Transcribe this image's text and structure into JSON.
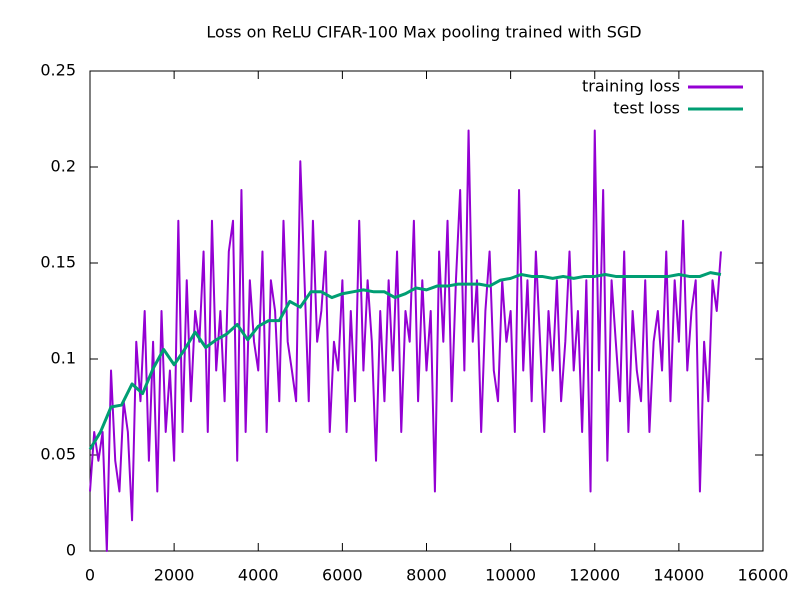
{
  "chart_data": {
    "type": "line",
    "title": "Loss on ReLU CIFAR-100 Max pooling trained with SGD",
    "xlim": [
      0,
      16000
    ],
    "xticks": [
      0,
      2000,
      4000,
      6000,
      8000,
      10000,
      12000,
      14000,
      16000
    ],
    "ylim": [
      0,
      0.25
    ],
    "yticks": [
      0,
      0.05,
      0.1,
      0.15,
      0.2,
      0.25
    ],
    "legend": "top-right",
    "series": [
      {
        "name": "training loss",
        "color": "#9400d3",
        "x": [
          0,
          100,
          200,
          300,
          400,
          500,
          600,
          700,
          800,
          900,
          1000,
          1100,
          1200,
          1300,
          1400,
          1500,
          1600,
          1700,
          1800,
          1900,
          2000,
          2100,
          2200,
          2300,
          2400,
          2500,
          2600,
          2700,
          2800,
          2900,
          3000,
          3100,
          3200,
          3300,
          3400,
          3500,
          3600,
          3700,
          3800,
          3900,
          4000,
          4100,
          4200,
          4300,
          4400,
          4500,
          4600,
          4700,
          4800,
          4900,
          5000,
          5100,
          5200,
          5300,
          5400,
          5500,
          5600,
          5700,
          5800,
          5900,
          6000,
          6100,
          6200,
          6300,
          6400,
          6500,
          6600,
          6700,
          6800,
          6900,
          7000,
          7100,
          7200,
          7300,
          7400,
          7500,
          7600,
          7700,
          7800,
          7900,
          8000,
          8100,
          8200,
          8300,
          8400,
          8500,
          8600,
          8700,
          8800,
          8900,
          9000,
          9100,
          9200,
          9300,
          9400,
          9500,
          9600,
          9700,
          9800,
          9900,
          10000,
          10100,
          10200,
          10300,
          10400,
          10500,
          10600,
          10700,
          10800,
          10900,
          11000,
          11100,
          11200,
          11300,
          11400,
          11500,
          11600,
          11700,
          11800,
          11900,
          12000,
          12100,
          12200,
          12300,
          12400,
          12500,
          12600,
          12700,
          12800,
          12900,
          13000,
          13100,
          13200,
          13300,
          13400,
          13500,
          13600,
          13700,
          13800,
          13900,
          14000,
          14100,
          14200,
          14300,
          14400,
          14500,
          14600,
          14700,
          14800,
          14900,
          15000
        ],
        "values": [
          0.031,
          0.062,
          0.047,
          0.062,
          0.0,
          0.094,
          0.047,
          0.031,
          0.078,
          0.062,
          0.016,
          0.109,
          0.078,
          0.125,
          0.047,
          0.109,
          0.031,
          0.125,
          0.062,
          0.094,
          0.047,
          0.172,
          0.062,
          0.141,
          0.078,
          0.125,
          0.109,
          0.156,
          0.062,
          0.172,
          0.094,
          0.125,
          0.078,
          0.156,
          0.172,
          0.047,
          0.188,
          0.062,
          0.141,
          0.109,
          0.094,
          0.156,
          0.062,
          0.141,
          0.125,
          0.078,
          0.172,
          0.109,
          0.094,
          0.078,
          0.203,
          0.141,
          0.078,
          0.172,
          0.109,
          0.125,
          0.156,
          0.062,
          0.109,
          0.094,
          0.141,
          0.062,
          0.125,
          0.078,
          0.172,
          0.094,
          0.141,
          0.109,
          0.047,
          0.125,
          0.078,
          0.141,
          0.094,
          0.156,
          0.062,
          0.125,
          0.109,
          0.172,
          0.078,
          0.141,
          0.094,
          0.125,
          0.031,
          0.156,
          0.109,
          0.172,
          0.078,
          0.141,
          0.188,
          0.094,
          0.219,
          0.109,
          0.141,
          0.062,
          0.125,
          0.156,
          0.094,
          0.078,
          0.141,
          0.109,
          0.125,
          0.062,
          0.188,
          0.094,
          0.141,
          0.078,
          0.156,
          0.109,
          0.062,
          0.125,
          0.094,
          0.141,
          0.078,
          0.109,
          0.156,
          0.094,
          0.125,
          0.062,
          0.141,
          0.031,
          0.219,
          0.094,
          0.188,
          0.047,
          0.141,
          0.109,
          0.078,
          0.156,
          0.062,
          0.125,
          0.094,
          0.078,
          0.141,
          0.062,
          0.109,
          0.125,
          0.094,
          0.156,
          0.078,
          0.141,
          0.109,
          0.172,
          0.094,
          0.125,
          0.141,
          0.031,
          0.109,
          0.078,
          0.141,
          0.125,
          0.156
        ]
      },
      {
        "name": "test loss",
        "color": "#009e73",
        "x": [
          0,
          250,
          500,
          750,
          1000,
          1250,
          1500,
          1750,
          2000,
          2250,
          2500,
          2750,
          3000,
          3250,
          3500,
          3750,
          4000,
          4250,
          4500,
          4750,
          5000,
          5250,
          5500,
          5750,
          6000,
          6250,
          6500,
          6750,
          7000,
          7250,
          7500,
          7750,
          8000,
          8250,
          8500,
          8750,
          9000,
          9250,
          9500,
          9750,
          10000,
          10250,
          10500,
          10750,
          11000,
          11250,
          11500,
          11750,
          12000,
          12250,
          12500,
          12750,
          13000,
          13250,
          13500,
          13750,
          14000,
          14250,
          14500,
          14750,
          15000
        ],
        "values": [
          0.053,
          0.062,
          0.075,
          0.076,
          0.087,
          0.082,
          0.095,
          0.105,
          0.097,
          0.105,
          0.114,
          0.106,
          0.11,
          0.113,
          0.118,
          0.11,
          0.117,
          0.12,
          0.12,
          0.13,
          0.127,
          0.135,
          0.135,
          0.132,
          0.134,
          0.135,
          0.136,
          0.135,
          0.135,
          0.132,
          0.134,
          0.137,
          0.136,
          0.138,
          0.138,
          0.139,
          0.139,
          0.139,
          0.138,
          0.141,
          0.142,
          0.144,
          0.143,
          0.143,
          0.142,
          0.143,
          0.142,
          0.143,
          0.143,
          0.144,
          0.143,
          0.143,
          0.143,
          0.143,
          0.143,
          0.143,
          0.144,
          0.143,
          0.143,
          0.145,
          0.144
        ]
      }
    ]
  }
}
